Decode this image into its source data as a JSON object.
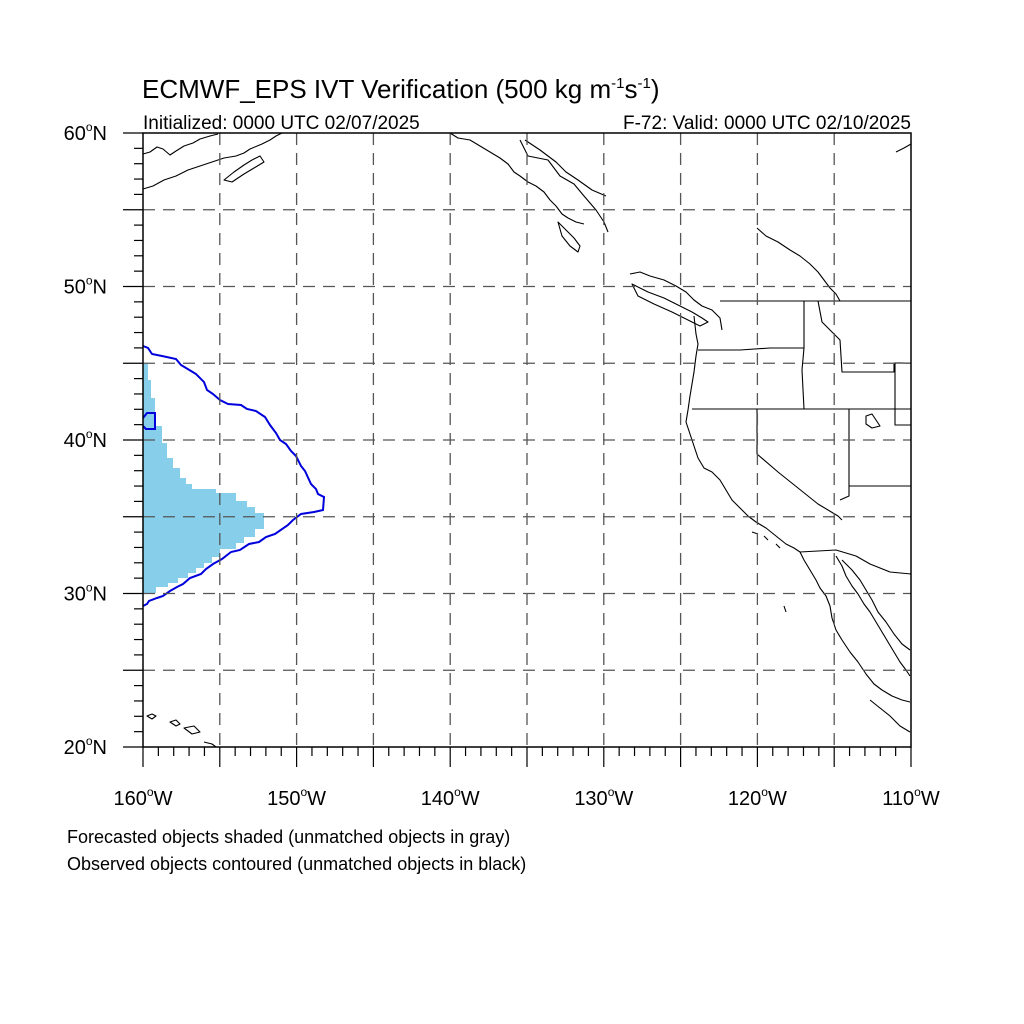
{
  "title": {
    "main": "ECMWF_EPS IVT Verification (500 kg m",
    "sup1": "-1",
    "mid": "s",
    "sup2": "-1",
    "end": ")"
  },
  "subtitle": {
    "left": "Initialized: 0000 UTC 02/07/2025",
    "right": "F-72: Valid: 0000 UTC 02/10/2025"
  },
  "map": {
    "lon_range": [
      -160,
      -110
    ],
    "lat_range": [
      20,
      60
    ],
    "grid_lons": [
      -155,
      -150,
      -145,
      -140,
      -135,
      -130,
      -125,
      -120,
      -115
    ],
    "grid_lats": [
      25,
      30,
      35,
      40,
      45,
      50,
      55
    ],
    "lon_labels": [
      {
        "lon": -160,
        "num": "160",
        "hemi": "W"
      },
      {
        "lon": -150,
        "num": "150",
        "hemi": "W"
      },
      {
        "lon": -140,
        "num": "140",
        "hemi": "W"
      },
      {
        "lon": -130,
        "num": "130",
        "hemi": "W"
      },
      {
        "lon": -120,
        "num": "120",
        "hemi": "W"
      },
      {
        "lon": -110,
        "num": "110",
        "hemi": "W"
      }
    ],
    "lat_labels": [
      {
        "lat": 60,
        "num": "60",
        "hemi": "N"
      },
      {
        "lat": 50,
        "num": "50",
        "hemi": "N"
      },
      {
        "lat": 40,
        "num": "40",
        "hemi": "N"
      },
      {
        "lat": 30,
        "num": "30",
        "hemi": "N"
      },
      {
        "lat": 20,
        "num": "20",
        "hemi": "N"
      }
    ],
    "colors": {
      "forecast_fill": "#87ceeb",
      "observed_contour": "#0000dd",
      "coastline": "#000000",
      "grid": "#555555"
    }
  },
  "footnotes": [
    "Forecasted objects shaded (unmatched objects in gray)",
    "Observed objects contoured (unmatched objects in black)"
  ]
}
